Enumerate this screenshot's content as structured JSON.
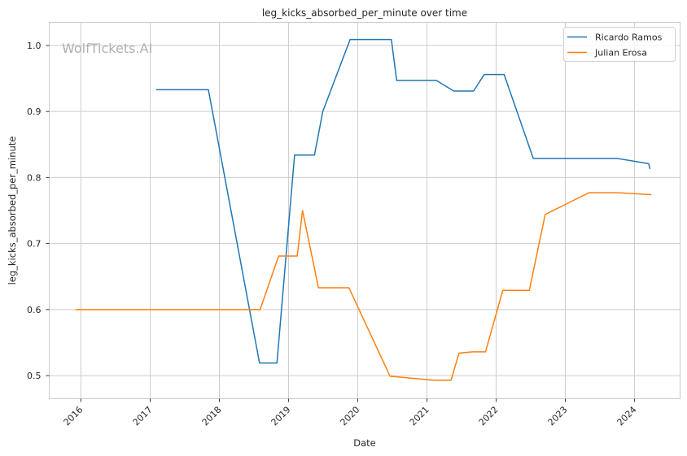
{
  "watermark": "WolfTickets.AI",
  "chart_data": {
    "type": "line",
    "title": "leg_kicks_absorbed_per_minute over time",
    "xlabel": "Date",
    "ylabel": "leg_kicks_absorbed_per_minute",
    "xlim": [
      "2015-07-18",
      "2024-08-29"
    ],
    "ylim": [
      0.465,
      1.035
    ],
    "x_ticks": [
      "2016-01-01",
      "2017-01-01",
      "2018-01-01",
      "2019-01-01",
      "2020-01-01",
      "2021-01-01",
      "2022-01-01",
      "2023-01-01",
      "2024-01-01"
    ],
    "x_tick_labels": [
      "2016",
      "2017",
      "2018",
      "2019",
      "2020",
      "2021",
      "2022",
      "2023",
      "2024"
    ],
    "y_ticks": [
      0.5,
      0.6,
      0.7,
      0.8,
      0.9,
      1.0
    ],
    "y_tick_labels": [
      "0.5",
      "0.6",
      "0.7",
      "0.8",
      "0.9",
      "1.0"
    ],
    "grid": true,
    "legend_position": "top-right",
    "series": [
      {
        "name": "Ricardo Ramos",
        "color": "#1f77b4",
        "points": [
          [
            "2017-02-01",
            0.933
          ],
          [
            "2017-11-04",
            0.933
          ],
          [
            "2018-08-01",
            0.519
          ],
          [
            "2018-11-01",
            0.519
          ],
          [
            "2019-02-02",
            0.834
          ],
          [
            "2019-05-18",
            0.834
          ],
          [
            "2019-07-01",
            0.9
          ],
          [
            "2019-11-22",
            1.009
          ],
          [
            "2020-06-27",
            1.009
          ],
          [
            "2020-07-25",
            0.947
          ],
          [
            "2021-02-20",
            0.947
          ],
          [
            "2021-05-22",
            0.931
          ],
          [
            "2021-09-04",
            0.931
          ],
          [
            "2021-10-30",
            0.956
          ],
          [
            "2022-02-12",
            0.956
          ],
          [
            "2022-07-16",
            0.829
          ],
          [
            "2023-09-30",
            0.829
          ],
          [
            "2024-03-16",
            0.821
          ],
          [
            "2024-03-23",
            0.813
          ]
        ]
      },
      {
        "name": "Julian Erosa",
        "color": "#ff7f0e",
        "points": [
          [
            "2015-12-04",
            0.6
          ],
          [
            "2018-08-04",
            0.6
          ],
          [
            "2018-11-10",
            0.681
          ],
          [
            "2019-02-16",
            0.681
          ],
          [
            "2019-03-16",
            0.75
          ],
          [
            "2019-06-08",
            0.633
          ],
          [
            "2019-11-16",
            0.633
          ],
          [
            "2020-06-20",
            0.499
          ],
          [
            "2021-02-06",
            0.493
          ],
          [
            "2021-05-08",
            0.493
          ],
          [
            "2021-06-19",
            0.534
          ],
          [
            "2021-08-28",
            0.536
          ],
          [
            "2021-11-06",
            0.536
          ],
          [
            "2022-02-05",
            0.629
          ],
          [
            "2022-06-25",
            0.629
          ],
          [
            "2022-09-17",
            0.744
          ],
          [
            "2023-01-21",
            0.762
          ],
          [
            "2023-05-06",
            0.777
          ],
          [
            "2023-10-07",
            0.777
          ],
          [
            "2024-03-30",
            0.774
          ]
        ]
      }
    ]
  }
}
